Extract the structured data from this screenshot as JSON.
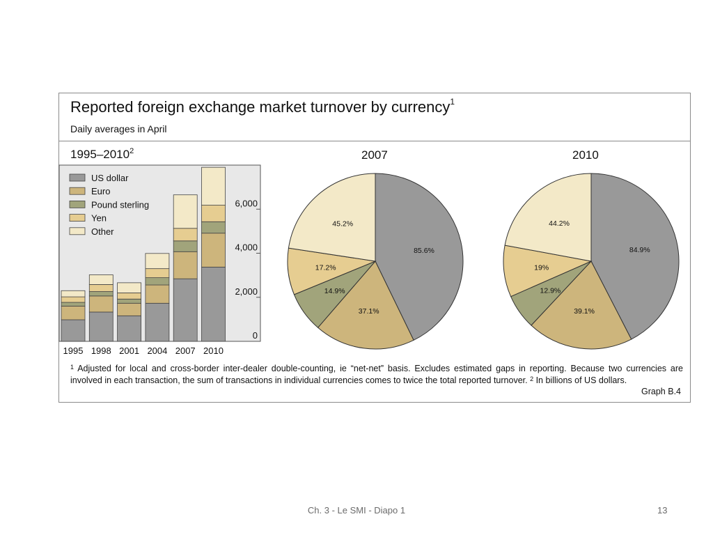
{
  "title": "Reported foreign exchange market turnover by currency",
  "title_note": "1",
  "subtitle": "Daily averages in April",
  "colors": {
    "US dollar": "#999999",
    "Euro": "#cdb57c",
    "Pound sterling": "#a1a47b",
    "Yen": "#e6cd91",
    "Other": "#f3e9c8",
    "plot_bg": "#e8e8e8"
  },
  "chart_data": [
    {
      "type": "bar",
      "stacked": true,
      "title": "1995–2010",
      "title_note": "2",
      "categories": [
        "1995",
        "1998",
        "2001",
        "2004",
        "2007",
        "2010"
      ],
      "series": [
        {
          "name": "US dollar",
          "values": [
            980,
            1330,
            1160,
            1730,
            2840,
            3370
          ]
        },
        {
          "name": "Euro",
          "values": [
            620,
            730,
            570,
            830,
            1230,
            1540
          ]
        },
        {
          "name": "Pound sterling",
          "values": [
            170,
            200,
            190,
            330,
            490,
            520
          ]
        },
        {
          "name": "Yen",
          "values": [
            250,
            320,
            280,
            410,
            570,
            750
          ]
        },
        {
          "name": "Other",
          "values": [
            280,
            440,
            460,
            690,
            1520,
            1720
          ]
        }
      ],
      "yticks": [
        0,
        2000,
        4000,
        6000
      ],
      "ytick_labels": [
        "0",
        "2,000",
        "4,000",
        "6,000"
      ],
      "ylim": [
        0,
        8000
      ],
      "legend": [
        "US dollar",
        "Euro",
        "Pound sterling",
        "Yen",
        "Other"
      ],
      "legend_position": "top-left",
      "yaxis_position": "right"
    },
    {
      "type": "pie",
      "title": "2007",
      "labels": [
        "US dollar",
        "Euro",
        "Pound sterling",
        "Yen",
        "Other"
      ],
      "values": [
        85.6,
        37.1,
        14.9,
        17.2,
        45.2
      ],
      "value_labels": [
        "85.6%",
        "37.1%",
        "14.9%",
        "17.2%",
        "45.2%"
      ]
    },
    {
      "type": "pie",
      "title": "2010",
      "labels": [
        "US dollar",
        "Euro",
        "Pound sterling",
        "Yen",
        "Other"
      ],
      "values": [
        84.9,
        39.1,
        12.9,
        19,
        44.2
      ],
      "value_labels": [
        "84.9%",
        "39.1%",
        "12.9%",
        "19%",
        "44.2%"
      ]
    }
  ],
  "footnote": {
    "marker1": "1",
    "text1": " Adjusted for local and cross-border inter-dealer double-counting, ie “net-net” basis. Excludes estimated gaps in reporting. Because two currencies are involved in each transaction, the sum of transactions in individual currencies comes to twice the total reported turnover.  ",
    "marker2": "2",
    "text2": " In billions of US dollars."
  },
  "graph_ref": "Graph B.4",
  "slide_footer": "Ch. 3 - Le SMI - Diapo 1",
  "slide_number": "13"
}
